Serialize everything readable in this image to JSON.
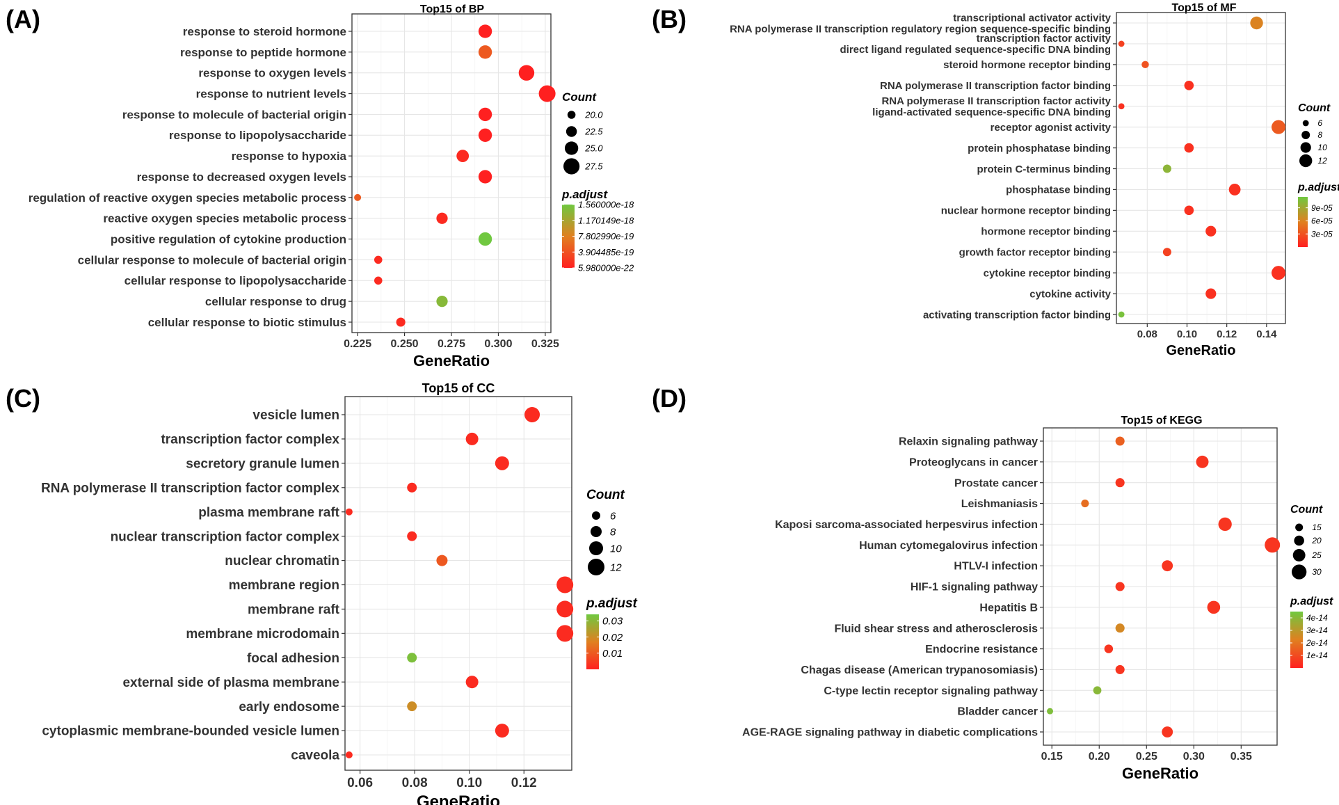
{
  "figure": {
    "panel_labels": [
      "(A)",
      "(B)",
      "(C)",
      "(D)"
    ]
  },
  "chart_data": [
    {
      "type": "scatter",
      "title": "Top15 of BP",
      "xlabel": "GeneRatio",
      "xlim": [
        0.222,
        0.328
      ],
      "xticks": [
        0.225,
        0.25,
        0.275,
        0.3,
        0.325
      ],
      "xtick_labels": [
        "0.225",
        "0.250",
        "0.275",
        "0.300",
        "0.325"
      ],
      "categories": [
        "response to steroid hormone",
        "response to peptide hormone",
        "response to oxygen levels",
        "response to nutrient levels",
        "response to molecule of bacterial origin",
        "response to lipopolysaccharide",
        "response to hypoxia",
        "response to decreased oxygen levels",
        "regulation of reactive oxygen species metabolic process",
        "reactive oxygen species metabolic process",
        "positive regulation of cytokine production",
        "cellular response to molecule of bacterial origin",
        "cellular response to lipopolysaccharide",
        "cellular response to drug",
        "cellular response to biotic stimulus"
      ],
      "x": [
        0.293,
        0.293,
        0.315,
        0.326,
        0.293,
        0.293,
        0.281,
        0.293,
        0.225,
        0.27,
        0.293,
        0.236,
        0.236,
        0.27,
        0.248
      ],
      "count": [
        25,
        25,
        27,
        28,
        25,
        25,
        24,
        25,
        19,
        23,
        25,
        20,
        20,
        23,
        21
      ],
      "p_adjust": [
        1e-21,
        4.6e-19,
        1e-21,
        1e-21,
        1e-21,
        1e-21,
        8e-20,
        1e-21,
        4.8e-19,
        8e-20,
        1.56e-18,
        8e-20,
        8e-20,
        1.4e-18,
        8e-20
      ],
      "size_legend": {
        "title": "Count",
        "values": [
          20.0,
          22.5,
          25.0,
          27.5
        ],
        "labels": [
          "20.0",
          "22.5",
          "25.0",
          "27.5"
        ]
      },
      "size_range": [
        19,
        28
      ],
      "radius_range": [
        5,
        12
      ],
      "color_legend": {
        "title": "p.adjust",
        "min": 5.98e-22,
        "max": 1.56e-18,
        "ticks": [
          1.56e-18,
          1.170149e-18,
          7.80299e-19,
          3.904485e-19,
          5.98e-22
        ],
        "labels": [
          "1.560000e-18",
          "1.170149e-18",
          "7.802990e-19",
          "3.904485e-19",
          "5.980000e-22"
        ]
      }
    },
    {
      "type": "scatter",
      "title": "Top15 of MF",
      "xlabel": "GeneRatio",
      "xlim": [
        0.0645,
        0.1495
      ],
      "xticks": [
        0.08,
        0.1,
        0.12,
        0.14
      ],
      "xtick_labels": [
        "0.08",
        "0.10",
        "0.12",
        "0.14"
      ],
      "categories": [
        [
          "transcriptional activator activity",
          "RNA polymerase II transcription regulatory region sequence-specific binding"
        ],
        [
          "transcription factor activity",
          "direct ligand regulated sequence-specific DNA binding"
        ],
        [
          "steroid hormone receptor binding"
        ],
        [
          "RNA polymerase II transcription factor binding"
        ],
        [
          "RNA polymerase II transcription factor activity",
          "ligand-activated sequence-specific DNA binding"
        ],
        [
          "receptor agonist activity"
        ],
        [
          "protein phosphatase binding"
        ],
        [
          "protein C-terminus binding"
        ],
        [
          "phosphatase binding"
        ],
        [
          "nuclear hormone receptor binding"
        ],
        [
          "hormone receptor binding"
        ],
        [
          "growth factor receptor binding"
        ],
        [
          "cytokine receptor binding"
        ],
        [
          "cytokine activity"
        ],
        [
          "activating transcription factor binding"
        ]
      ],
      "x": [
        0.135,
        0.067,
        0.079,
        0.101,
        0.067,
        0.146,
        0.101,
        0.09,
        0.124,
        0.101,
        0.112,
        0.09,
        0.146,
        0.112,
        0.067
      ],
      "count": [
        12,
        6,
        7,
        9,
        6,
        13,
        9,
        8,
        11,
        9,
        10,
        8,
        13,
        10,
        6
      ],
      "p_adjust": [
        6e-05,
        2e-05,
        3e-05,
        1e-05,
        1e-05,
        3.5e-05,
        1e-05,
        0.0001,
        1e-05,
        1e-05,
        1e-05,
        2e-05,
        1e-05,
        1e-05,
        0.00011
      ],
      "size_legend": {
        "title": "Count",
        "values": [
          6,
          8,
          10,
          12
        ],
        "labels": [
          "6",
          "8",
          "10",
          "12"
        ]
      },
      "size_range": [
        5.5,
        13
      ],
      "radius_range": [
        4,
        10
      ],
      "color_legend": {
        "title": "p.adjust",
        "min": 0,
        "max": 0.000115,
        "ticks": [
          9e-05,
          6e-05,
          3e-05
        ],
        "labels": [
          "9e-05",
          "6e-05",
          "3e-05"
        ]
      }
    },
    {
      "type": "scatter",
      "title": "Top15 of CC",
      "xlabel": "GeneRatio",
      "xlim": [
        0.0545,
        0.1375
      ],
      "xticks": [
        0.06,
        0.08,
        0.1,
        0.12
      ],
      "xtick_labels": [
        "0.06",
        "0.08",
        "0.10",
        "0.12"
      ],
      "categories": [
        "vesicle lumen",
        "transcription factor complex",
        "secretory granule lumen",
        "RNA polymerase II transcription factor complex",
        "plasma membrane raft",
        "nuclear transcription factor complex",
        "nuclear chromatin",
        "membrane region",
        "membrane raft",
        "membrane microdomain",
        "focal adhesion",
        "external side of plasma membrane",
        "early endosome",
        "cytoplasmic membrane-bounded vesicle lumen",
        "caveola"
      ],
      "x": [
        0.123,
        0.101,
        0.112,
        0.079,
        0.056,
        0.079,
        0.09,
        0.135,
        0.135,
        0.135,
        0.079,
        0.101,
        0.079,
        0.112,
        0.056
      ],
      "count": [
        11,
        9,
        10,
        7,
        5,
        7,
        8,
        12,
        12,
        12,
        7,
        9,
        7,
        10,
        5
      ],
      "p_adjust": [
        0.002,
        0.002,
        0.002,
        0.002,
        0.002,
        0.002,
        0.01,
        0.002,
        0.002,
        0.002,
        0.032,
        0.002,
        0.02,
        0.002,
        0.002
      ],
      "size_legend": {
        "title": "Count",
        "values": [
          6,
          8,
          10,
          12
        ],
        "labels": [
          "6",
          "8",
          "10",
          "12"
        ]
      },
      "size_range": [
        5,
        12
      ],
      "radius_range": [
        5,
        12
      ],
      "color_legend": {
        "title": "p.adjust",
        "min": 0,
        "max": 0.034,
        "ticks": [
          0.03,
          0.02,
          0.01
        ],
        "labels": [
          "0.03",
          "0.02",
          "0.01"
        ]
      }
    },
    {
      "type": "scatter",
      "title": "Top15 of KEGG",
      "xlabel": "GeneRatio",
      "xlim": [
        0.141,
        0.388
      ],
      "xticks": [
        0.15,
        0.2,
        0.25,
        0.3,
        0.35
      ],
      "xtick_labels": [
        "0.15",
        "0.20",
        "0.25",
        "0.30",
        "0.35"
      ],
      "categories": [
        "Relaxin signaling pathway",
        "Proteoglycans in cancer",
        "Prostate cancer",
        "Leishmaniasis",
        "Kaposi sarcoma-associated herpesvirus infection",
        "Human cytomegalovirus infection",
        "HTLV-I infection",
        "HIF-1 signaling pathway",
        "Hepatitis B",
        "Fluid shear stress and atherosclerosis",
        "Endocrine resistance",
        "Chagas disease (American trypanosomiasis)",
        "C-type lectin receptor signaling pathway",
        "Bladder cancer",
        "AGE-RAGE signaling pathway in diabetic complications"
      ],
      "x": [
        0.222,
        0.309,
        0.222,
        0.185,
        0.333,
        0.383,
        0.272,
        0.222,
        0.321,
        0.222,
        0.21,
        0.222,
        0.198,
        0.148,
        0.272
      ],
      "count": [
        18,
        25,
        18,
        15,
        27,
        31,
        22,
        18,
        26,
        18,
        17,
        18,
        16,
        12,
        22
      ],
      "p_adjust": [
        1.5e-14,
        5e-15,
        5e-15,
        1.8e-14,
        5e-15,
        5e-15,
        5e-15,
        5e-15,
        5e-15,
        2.5e-14,
        5e-15,
        5e-15,
        4e-14,
        4.2e-14,
        5e-15
      ],
      "size_legend": {
        "title": "Count",
        "values": [
          15,
          20,
          25,
          30
        ],
        "labels": [
          "15",
          "20",
          "25",
          "30"
        ]
      },
      "size_range": [
        12,
        31
      ],
      "radius_range": [
        4.5,
        11
      ],
      "color_legend": {
        "title": "p.adjust",
        "min": 0,
        "max": 4.5e-14,
        "ticks": [
          4e-14,
          3e-14,
          2e-14,
          1e-14
        ],
        "labels": [
          "4e-14",
          "3e-14",
          "2e-14",
          "1e-14"
        ]
      }
    }
  ]
}
